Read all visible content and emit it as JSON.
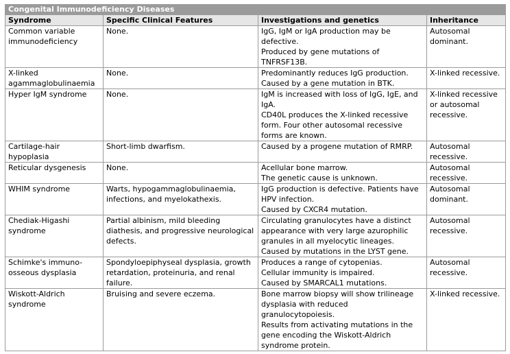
{
  "table": {
    "caption": "Congenital Immunodeficiency Diseases",
    "headers": {
      "syndrome": "Syndrome",
      "features": "Specific Clinical Features",
      "investigations": "Investigations and genetics",
      "inheritance": "Inheritance"
    },
    "rows": [
      {
        "syndrome": "Common variable immunodeficiency",
        "features": "None.",
        "investigations": [
          "IgG, IgM or IgA production may be defective.",
          "Produced by gene mutations of TNFRSF13B."
        ],
        "inheritance": "Autosomal dominant."
      },
      {
        "syndrome": "X-linked agammaglobulinaemia",
        "features": "None.",
        "investigations": [
          "Predominantly reduces IgG production.",
          "Caused by a gene mutation in BTK."
        ],
        "inheritance": "X-linked recessive."
      },
      {
        "syndrome": "Hyper IgM syndrome",
        "features": "None.",
        "investigations": [
          "IgM is increased with loss of IgG, IgE, and IgA.",
          "CD40L produces the X-linked recessive form. Four other autosomal recessive forms are known."
        ],
        "inheritance": "X-linked recessive or autosomal recessive."
      },
      {
        "syndrome": "Cartilage-hair hypoplasia",
        "features": "Short-limb dwarfism.",
        "investigations": [
          "Caused by a progene mutation of RMRP."
        ],
        "inheritance": "Autosomal recessive."
      },
      {
        "syndrome": "Reticular dysgenesis",
        "features": "None.",
        "investigations": [
          "Acellular bone marrow.",
          "The genetic cause is unknown."
        ],
        "inheritance": "Autosomal recessive."
      },
      {
        "syndrome": "WHIM syndrome",
        "features": "Warts, hypogammaglobulinaemia, infections, and myelokathexis.",
        "investigations": [
          "IgG production is defective. Patients have HPV infection.",
          "Caused by CXCR4 mutation."
        ],
        "inheritance": "Autosomal dominant."
      },
      {
        "syndrome": "Chediak-Higashi syndrome",
        "features": "Partial albinism, mild bleeding diathesis, and progressive neurological defects.",
        "investigations": [
          "Circulating granulocytes have a distinct appearance with very large azurophilic granules in all myelocytic lineages.",
          "Caused by mutations in the LYST gene."
        ],
        "inheritance": "Autosomal recessive."
      },
      {
        "syndrome": "Schimke's immuno-osseous dysplasia",
        "features": "Spondyloepiphyseal dysplasia, growth retardation, proteinuria, and renal failure.",
        "investigations": [
          "Produces a range of cytopenias.",
          "Cellular immunity is impaired.",
          "Caused by SMARCAL1 mutations."
        ],
        "inheritance": "Autosomal recessive."
      },
      {
        "syndrome": "Wiskott-Aldrich syndrome",
        "features": "Bruising and severe eczema.",
        "investigations": [
          "Bone marrow biopsy will show trilineage dysplasia with reduced granulocytopoiesis.",
          "Results from activating mutations in the gene encoding the Wiskott-Aldrich syndrome protein."
        ],
        "inheritance": "X-linked recessive."
      }
    ]
  }
}
